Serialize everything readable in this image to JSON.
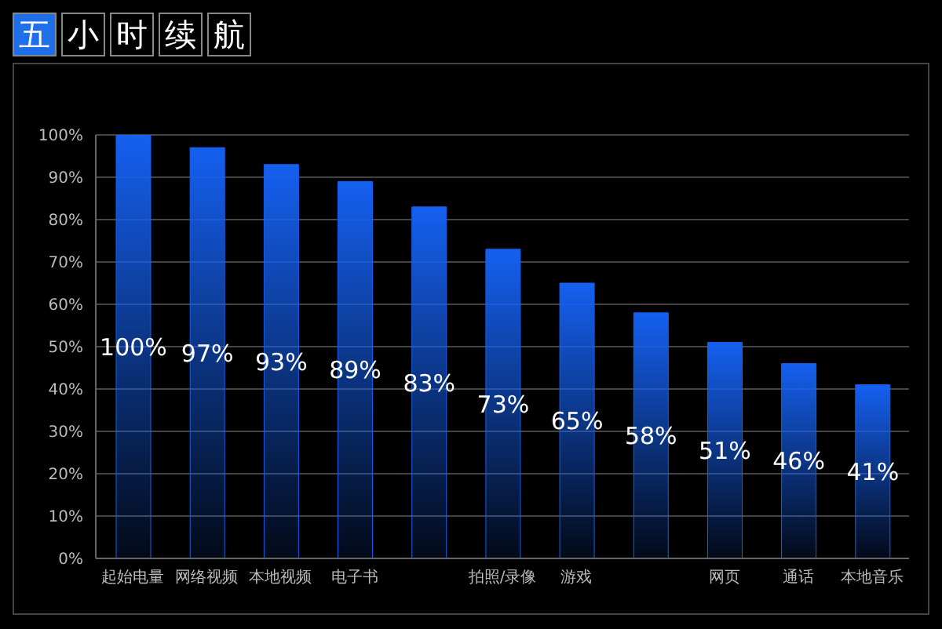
{
  "chart_data": {
    "type": "bar",
    "title": "五小时续航",
    "categories": [
      "起始电量",
      "网络视频",
      "本地视频",
      "电子书",
      null,
      "拍照/录像",
      "游戏",
      null,
      "网页",
      "通话",
      "本地音乐"
    ],
    "values": [
      100,
      97,
      93,
      89,
      83,
      73,
      65,
      58,
      51,
      46,
      41
    ],
    "value_labels": [
      "100%",
      "97%",
      "93%",
      "89%",
      "83%",
      "73%",
      "65%",
      "58%",
      "51%",
      "46%",
      "41%"
    ],
    "color": "#1560f0",
    "ylim": [
      0,
      100
    ],
    "yticks": [
      {
        "value": 0,
        "label": "0%"
      },
      {
        "value": 10,
        "label": "10%"
      },
      {
        "value": 20,
        "label": "20%"
      },
      {
        "value": 30,
        "label": "30%"
      },
      {
        "value": 40,
        "label": "40%"
      },
      {
        "value": 50,
        "label": "50%"
      },
      {
        "value": 60,
        "label": "60%"
      },
      {
        "value": 70,
        "label": "70%"
      },
      {
        "value": 80,
        "label": "80%"
      },
      {
        "value": 90,
        "label": "90%"
      },
      {
        "value": 100,
        "label": "100%"
      }
    ],
    "grid": "y"
  }
}
